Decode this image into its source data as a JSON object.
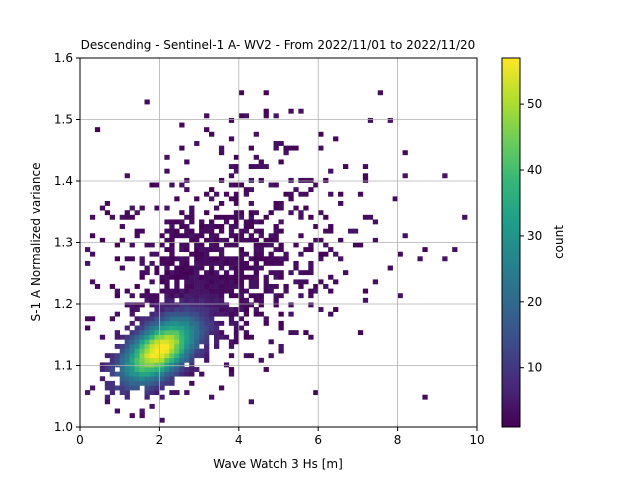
{
  "chart_data": {
    "type": "heatmap",
    "title": "Descending - Sentinel-1 A- WV2 - From 2022/11/01 to 2022/11/20",
    "xlabel": "Wave Watch 3 Hs [m]",
    "ylabel": "S-1 A Normalized variance",
    "xlim": [
      0,
      10
    ],
    "ylim": [
      1.0,
      1.6
    ],
    "x_ticks": [
      "0",
      "2",
      "4",
      "6",
      "8",
      "10"
    ],
    "y_ticks": [
      "1.0",
      "1.1",
      "1.2",
      "1.3",
      "1.4",
      "1.5",
      "1.6"
    ],
    "grid": true,
    "colormap": "viridis",
    "colorbar": {
      "label": "count",
      "range": [
        1,
        57
      ],
      "ticks": [
        "10",
        "20",
        "30",
        "40",
        "50"
      ]
    },
    "bins": {
      "x_width": 0.125,
      "y_width": 0.0075
    },
    "density_summary": {
      "peak_hs_m": 2.0,
      "peak_normalized_variance": 1.125,
      "peak_count": 57
    }
  }
}
